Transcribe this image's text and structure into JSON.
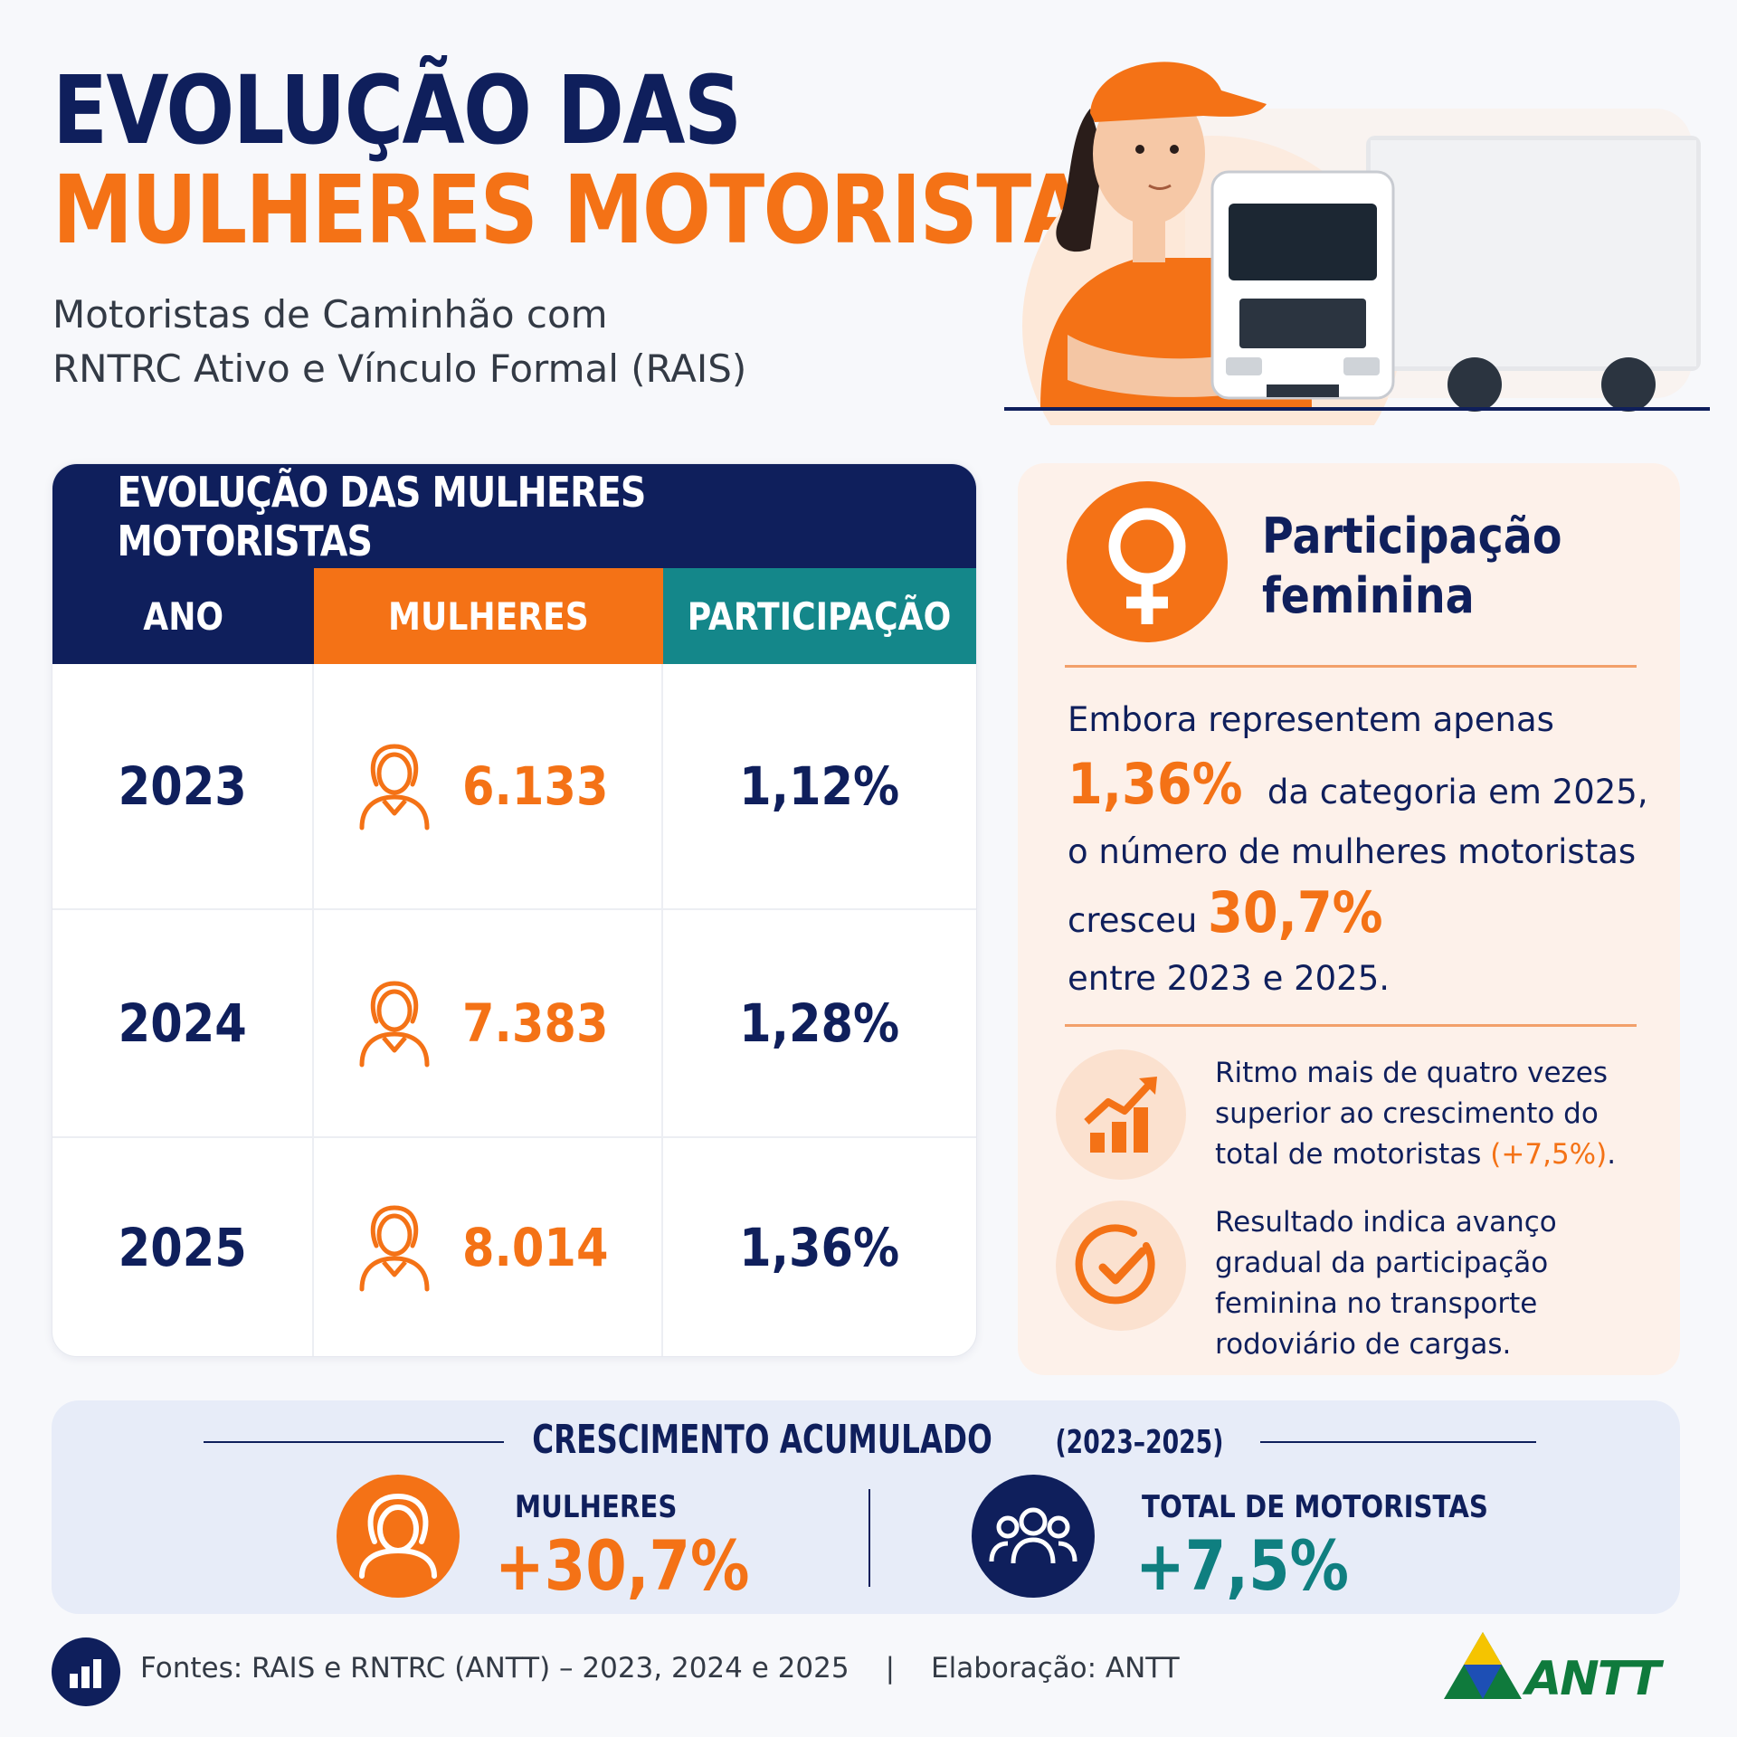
{
  "header": {
    "title_line1": "EVOLUÇÃO DAS",
    "title_line2": "MULHERES MOTORISTAS",
    "subtitle_line1": "Motoristas de Caminhão com",
    "subtitle_line2": "RNTRC Ativo e Vínculo Formal (RAIS)"
  },
  "table": {
    "title": "EVOLUÇÃO DAS MULHERES MOTORISTAS",
    "headers": [
      "ANO",
      "MULHERES",
      "PARTICIPAÇÃO"
    ],
    "rows": [
      {
        "ano": "2023",
        "mulheres": "6.133",
        "participacao": "1,12%"
      },
      {
        "ano": "2024",
        "mulheres": "7.383",
        "participacao": "1,28%"
      },
      {
        "ano": "2025",
        "mulheres": "8.014",
        "participacao": "1,36%"
      }
    ]
  },
  "panel": {
    "title_line1": "Participação",
    "title_line2": "feminina",
    "text_line1": "Embora representem apenas",
    "highlight1": "1,36%",
    "text_line2": " da categoria em 2025,",
    "text_line3": "o número de mulheres motoristas",
    "text_line4": "cresceu ",
    "highlight2": "30,7%",
    "text_line5": "entre 2023 e 2025.",
    "bullet1_line1": "Ritmo mais de quatro vezes",
    "bullet1_line2": "superior ao crescimento do",
    "bullet1_line3": "total de motoristas ",
    "bullet1_highlight": "(+7,5%)",
    "bullet1_end": ".",
    "bullet2_line1": "Resultado indica avanço",
    "bullet2_line2": "gradual da participação",
    "bullet2_line3": "feminina no transporte",
    "bullet2_line4": "rodoviário de cargas."
  },
  "band": {
    "title": "CRESCIMENTO ACUMULADO",
    "range": "(2023–2025)",
    "stat1_label": "MULHERES",
    "stat1_value": "+30,7%",
    "stat2_label": "TOTAL DE MOTORISTAS",
    "stat2_value": "+7,5%"
  },
  "footer": {
    "sources": "Fontes: RAIS e RNTRC (ANTT) – 2023, 2024 e 2025",
    "separator": "|",
    "credit": "Elaboração: ANTT",
    "logo_text": "ANTT"
  },
  "colors": {
    "navy": "#0f1f5c",
    "orange": "#f47216",
    "teal": "#14878a",
    "logo_green": "#0f7a3c"
  },
  "icons": [
    "woman-icon",
    "venus-icon",
    "growth-chart-icon",
    "check-circle-icon",
    "group-icon",
    "bar-chart-icon"
  ]
}
